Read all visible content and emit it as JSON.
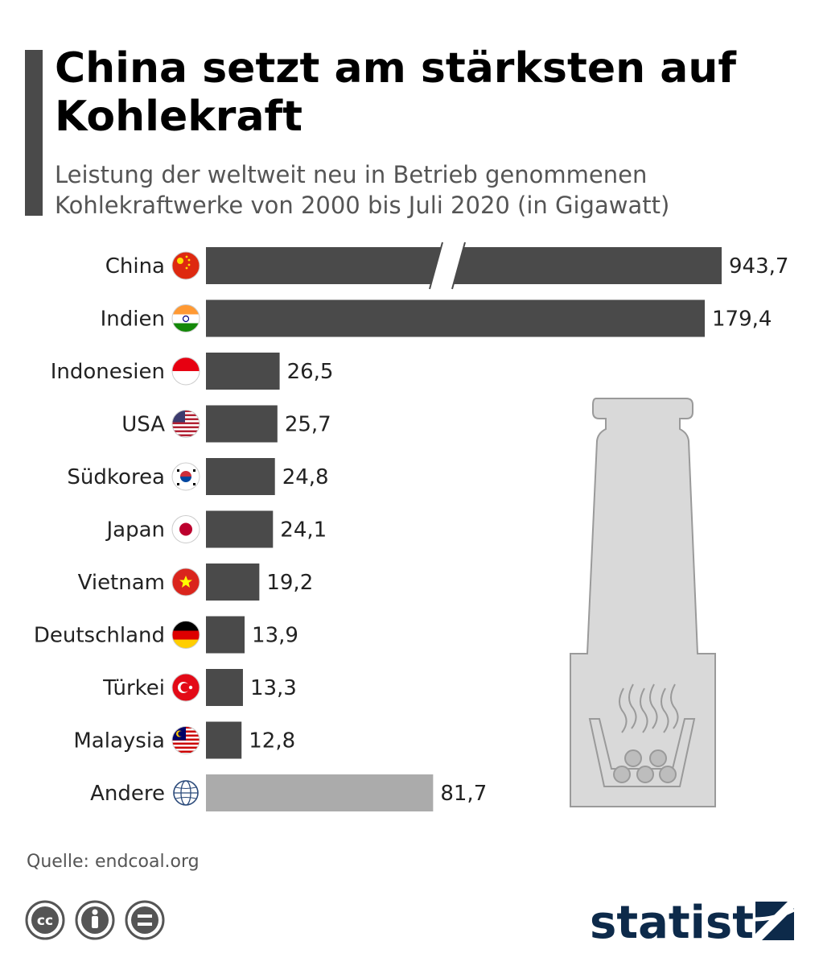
{
  "title": "China setzt am stärksten auf Kohlekraft",
  "subtitle": "Leistung der weltweit neu in Betrieb genommenen Kohlekraftwerke von 2000 bis Juli 2020 (in Gigawatt)",
  "source": "Quelle: endcoal.org",
  "brand": "statista",
  "colors": {
    "bar": "#4a4a4a",
    "bar_other": "#ababab",
    "accent": "#4a4a4a",
    "brand": "#0d2a4a"
  },
  "chart_data": {
    "type": "bar",
    "orientation": "horizontal",
    "axis_break": "China bar is truncated (broken axis)",
    "categories": [
      "China",
      "Indien",
      "Indonesien",
      "USA",
      "Südkorea",
      "Japan",
      "Vietnam",
      "Deutschland",
      "Türkei",
      "Malaysia",
      "Andere"
    ],
    "values": [
      943.7,
      179.4,
      26.5,
      25.7,
      24.8,
      24.1,
      19.2,
      13.9,
      13.3,
      12.8,
      81.7
    ],
    "value_labels": [
      "943,7",
      "179,4",
      "26,5",
      "25,7",
      "24,8",
      "24,1",
      "19,2",
      "13,9",
      "13,3",
      "12,8",
      "81,7"
    ],
    "flags": [
      "china-flag-icon",
      "india-flag-icon",
      "indonesia-flag-icon",
      "usa-flag-icon",
      "south-korea-flag-icon",
      "japan-flag-icon",
      "vietnam-flag-icon",
      "germany-flag-icon",
      "turkey-flag-icon",
      "malaysia-flag-icon",
      "globe-icon"
    ],
    "title": "China setzt am stärksten auf Kohlekraft",
    "xlabel": "",
    "ylabel": "",
    "grid": false
  }
}
